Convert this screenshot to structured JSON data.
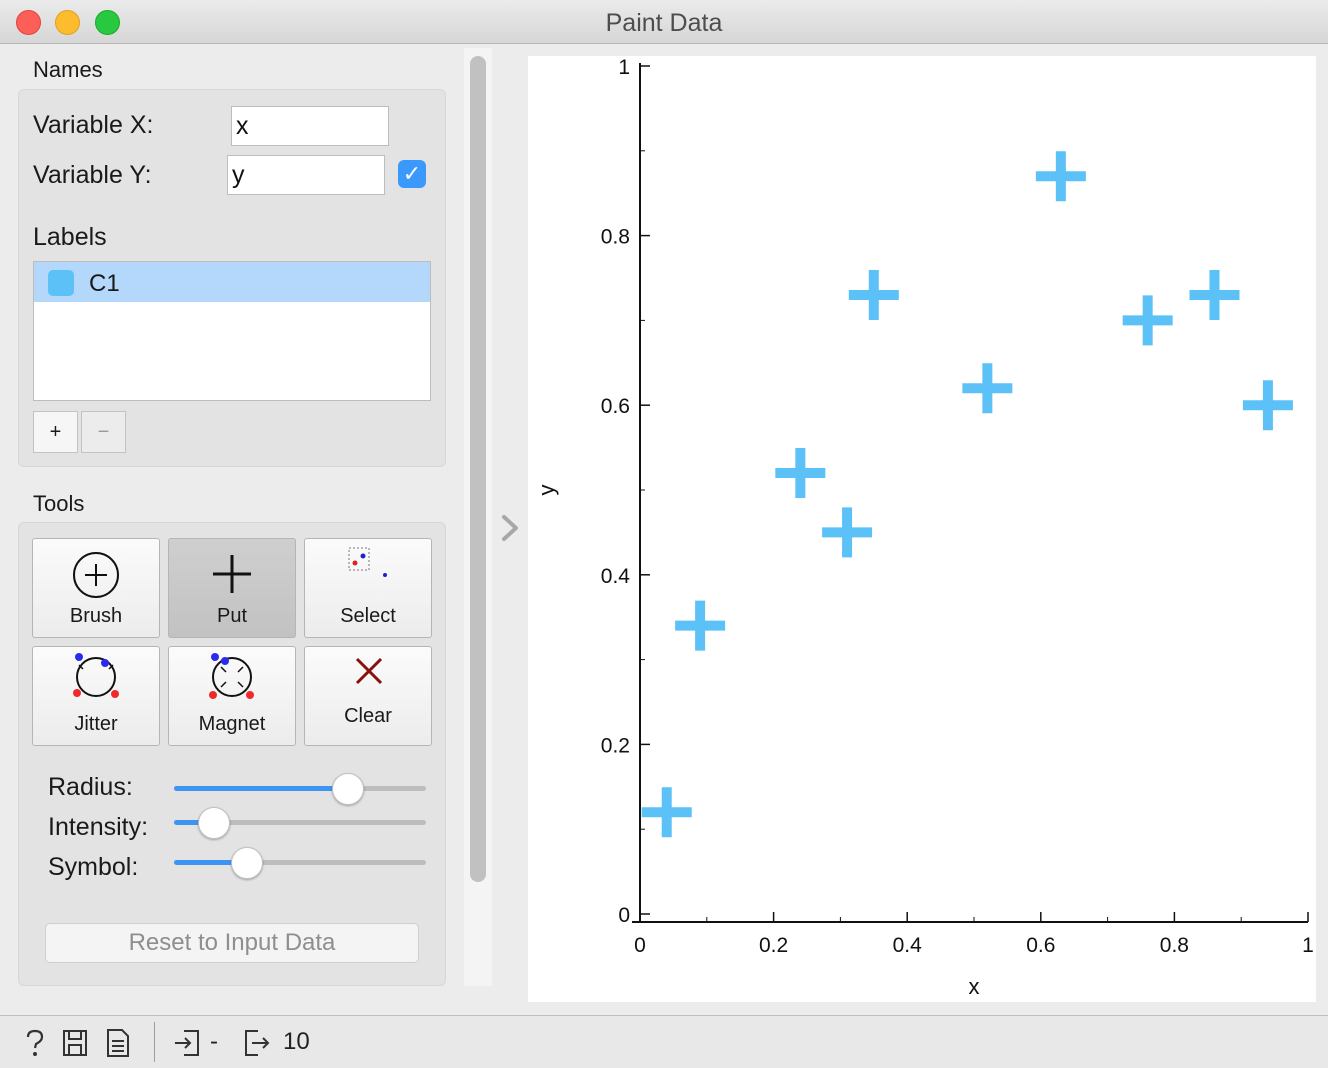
{
  "window": {
    "title": "Paint Data"
  },
  "names": {
    "section_label": "Names",
    "variable_x_label": "Variable X:",
    "variable_x_value": "x",
    "variable_y_label": "Variable Y:",
    "variable_y_value": "y",
    "variable_y_enabled": true
  },
  "labels": {
    "section_label": "Labels",
    "items": [
      {
        "name": "C1",
        "color": "#5bc1f7",
        "selected": true
      }
    ],
    "add_label": "+",
    "remove_label": "−"
  },
  "tools": {
    "section_label": "Tools",
    "buttons": [
      {
        "label": "Brush",
        "icon": "brush-icon",
        "active": false
      },
      {
        "label": "Put",
        "icon": "put-icon",
        "active": true
      },
      {
        "label": "Select",
        "icon": "select-icon",
        "active": false
      },
      {
        "label": "Jitter",
        "icon": "jitter-icon",
        "active": false
      },
      {
        "label": "Magnet",
        "icon": "magnet-icon",
        "active": false
      },
      {
        "label": "Clear",
        "icon": "clear-icon",
        "active": false
      }
    ]
  },
  "sliders": {
    "radius": {
      "label": "Radius:",
      "value": 0.72
    },
    "intensity": {
      "label": "Intensity:",
      "value": 0.11
    },
    "symbol": {
      "label": "Symbol:",
      "value": 0.26
    }
  },
  "reset_label": "Reset to Input Data",
  "status": {
    "input_value": "-",
    "output_value": "10"
  },
  "colors": {
    "accent": "#3d95f3",
    "point": "#5bc1f7"
  },
  "chart_data": {
    "type": "scatter",
    "xlabel": "x",
    "ylabel": "y",
    "xlim": [
      0,
      1
    ],
    "ylim": [
      0,
      1
    ],
    "xticks": [
      "0",
      "0.2",
      "0.4",
      "0.6",
      "0.8",
      "1"
    ],
    "yticks": [
      "0",
      "0.2",
      "0.4",
      "0.6",
      "0.8",
      "1"
    ],
    "marker": "plus",
    "series": [
      {
        "color": "#5bc1f7",
        "points": [
          {
            "x": 0.04,
            "y": 0.12
          },
          {
            "x": 0.09,
            "y": 0.34
          },
          {
            "x": 0.24,
            "y": 0.52
          },
          {
            "x": 0.31,
            "y": 0.45
          },
          {
            "x": 0.35,
            "y": 0.73
          },
          {
            "x": 0.52,
            "y": 0.62
          },
          {
            "x": 0.63,
            "y": 0.87
          },
          {
            "x": 0.76,
            "y": 0.7
          },
          {
            "x": 0.86,
            "y": 0.73
          },
          {
            "x": 0.94,
            "y": 0.6
          }
        ]
      }
    ]
  }
}
